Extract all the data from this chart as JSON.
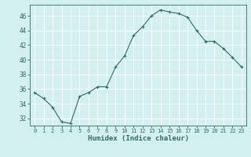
{
  "x": [
    0,
    1,
    2,
    3,
    4,
    5,
    6,
    7,
    8,
    9,
    10,
    11,
    12,
    13,
    14,
    15,
    16,
    17,
    18,
    19,
    20,
    21,
    22,
    23
  ],
  "y": [
    35.5,
    34.7,
    33.5,
    31.5,
    31.3,
    35.0,
    35.5,
    36.3,
    36.3,
    39.0,
    40.5,
    43.3,
    44.5,
    46.0,
    46.8,
    46.5,
    46.3,
    45.8,
    44.0,
    42.5,
    42.5,
    41.5,
    40.3,
    39.0
  ],
  "xlabel": "Humidex (Indice chaleur)",
  "ylabel": "",
  "line_color": "#2d6e65",
  "marker": "+",
  "bg_color": "#d4efef",
  "grid_color": "#ffffff",
  "ylim": [
    31,
    47.5
  ],
  "xlim": [
    -0.5,
    23.5
  ],
  "yticks": [
    32,
    34,
    36,
    38,
    40,
    42,
    44,
    46
  ],
  "xticks": [
    0,
    1,
    2,
    3,
    4,
    5,
    6,
    7,
    8,
    9,
    10,
    11,
    12,
    13,
    14,
    15,
    16,
    17,
    18,
    19,
    20,
    21,
    22,
    23
  ]
}
